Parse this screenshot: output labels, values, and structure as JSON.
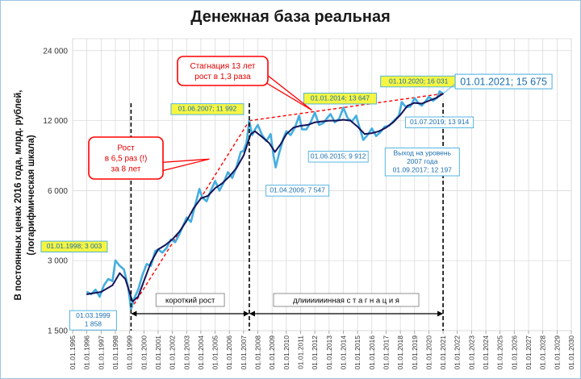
{
  "chart_data": {
    "type": "line",
    "title": "Денежная база реальная",
    "ylabel": "В постоянных ценах 2016 года, млрд. рублей, (логарифмическая шкала)",
    "ylabel_lines": [
      "В постоянных ценах 2016 года, млрд. рублей,",
      "(логарифмическая шкала)"
    ],
    "y_scale": "log",
    "ylim": [
      1500,
      27000
    ],
    "y_ticks": [
      1500,
      3000,
      6000,
      12000,
      24000
    ],
    "y_tick_labels": [
      "1 500",
      "3 000",
      "6 000",
      "12 000",
      "24 000"
    ],
    "x_range": [
      1995,
      2030
    ],
    "x_tick_labels": [
      "01.01.1995",
      "01.01.1996",
      "01.01.1997",
      "01.01.1998",
      "01.01.1999",
      "01.01.2000",
      "01.01.2001",
      "01.01.2002",
      "01.01.2003",
      "01.01.2004",
      "01.01.2005",
      "01.01.2006",
      "01.01.2007",
      "01.01.2008",
      "01.01.2009",
      "01.01.2010",
      "01.01.2011",
      "01.01.2012",
      "01.01.2013",
      "01.01.2014",
      "01.01.2015",
      "01.01.2016",
      "01.01.2017",
      "01.01.2018",
      "01.01.2019",
      "01.01.2020",
      "01.01.2021",
      "01.01.2022",
      "01.01.2023",
      "01.01.2024",
      "01.01.2025",
      "01.01.2026",
      "01.01.2027",
      "01.01.2028",
      "01.01.2029",
      "01.01.2030"
    ],
    "grid": true,
    "colors": {
      "monthly": "#44aee0",
      "trend": "#14145a",
      "dashed_trend": "#ff0000",
      "callout_border": "#ff0000",
      "label_yellow": "#f5f542",
      "label_border": "#44aee0",
      "label_text": "#1b6fb0"
    },
    "series": [
      {
        "values": [
          [
            1996.0,
            2200
          ],
          [
            1996.3,
            2150
          ],
          [
            1996.6,
            2250
          ],
          [
            1996.9,
            2100
          ],
          [
            1997.2,
            2350
          ],
          [
            1997.5,
            2500
          ],
          [
            1997.8,
            2450
          ],
          [
            1998.0,
            3003
          ],
          [
            1998.3,
            2850
          ],
          [
            1998.6,
            2750
          ],
          [
            1998.9,
            2300
          ],
          [
            1999.1,
            1858
          ],
          [
            1999.3,
            2050
          ],
          [
            1999.6,
            2250
          ],
          [
            1999.9,
            2600
          ],
          [
            2000.2,
            2900
          ],
          [
            2000.5,
            2850
          ],
          [
            2000.8,
            3300
          ],
          [
            2001.0,
            3350
          ],
          [
            2001.3,
            3250
          ],
          [
            2001.6,
            3400
          ],
          [
            2001.9,
            3700
          ],
          [
            2002.2,
            3600
          ],
          [
            2002.5,
            3900
          ],
          [
            2002.8,
            4300
          ],
          [
            2003.0,
            4600
          ],
          [
            2003.3,
            4400
          ],
          [
            2003.6,
            5200
          ],
          [
            2003.9,
            6100
          ],
          [
            2004.1,
            5600
          ],
          [
            2004.4,
            5400
          ],
          [
            2004.7,
            6000
          ],
          [
            2005.0,
            6600
          ],
          [
            2005.3,
            6000
          ],
          [
            2005.6,
            6500
          ],
          [
            2005.9,
            7200
          ],
          [
            2006.2,
            6800
          ],
          [
            2006.5,
            7600
          ],
          [
            2006.8,
            8800
          ],
          [
            2007.0,
            8900
          ],
          [
            2007.2,
            9600
          ],
          [
            2007.4,
            11992
          ],
          [
            2007.6,
            10400
          ],
          [
            2007.8,
            11000
          ],
          [
            2008.0,
            11500
          ],
          [
            2008.3,
            10400
          ],
          [
            2008.6,
            9800
          ],
          [
            2008.9,
            10500
          ],
          [
            2009.1,
            8500
          ],
          [
            2009.25,
            7547
          ],
          [
            2009.5,
            8700
          ],
          [
            2009.8,
            10100
          ],
          [
            2010.0,
            10800
          ],
          [
            2010.3,
            10400
          ],
          [
            2010.6,
            11200
          ],
          [
            2010.9,
            12600
          ],
          [
            2011.1,
            11000
          ],
          [
            2011.4,
            11000
          ],
          [
            2011.7,
            11800
          ],
          [
            2012.0,
            13000
          ],
          [
            2012.3,
            11500
          ],
          [
            2012.6,
            11700
          ],
          [
            2012.9,
            12400
          ],
          [
            2013.1,
            12800
          ],
          [
            2013.4,
            11800
          ],
          [
            2013.7,
            12200
          ],
          [
            2014.0,
            13647
          ],
          [
            2014.3,
            12300
          ],
          [
            2014.6,
            11900
          ],
          [
            2014.9,
            12600
          ],
          [
            2015.1,
            11400
          ],
          [
            2015.4,
            9912
          ],
          [
            2015.7,
            10400
          ],
          [
            2016.0,
            11100
          ],
          [
            2016.3,
            10300
          ],
          [
            2016.6,
            10700
          ],
          [
            2016.9,
            11300
          ],
          [
            2017.2,
            11400
          ],
          [
            2017.67,
            12197
          ],
          [
            2017.9,
            12600
          ],
          [
            2018.1,
            14400
          ],
          [
            2018.4,
            13700
          ],
          [
            2018.7,
            13800
          ],
          [
            2019.0,
            15000
          ],
          [
            2019.3,
            14200
          ],
          [
            2019.5,
            13914
          ],
          [
            2019.8,
            14600
          ],
          [
            2020.0,
            15200
          ],
          [
            2020.3,
            14600
          ],
          [
            2020.6,
            15100
          ],
          [
            2020.75,
            16031
          ],
          [
            2021.0,
            15675
          ]
        ]
      },
      {
        "values": [
          [
            1996.0,
            2150
          ],
          [
            1997.0,
            2200
          ],
          [
            1997.8,
            2350
          ],
          [
            1998.3,
            2650
          ],
          [
            1998.7,
            2500
          ],
          [
            1999.2,
            2000
          ],
          [
            1999.6,
            2100
          ],
          [
            2000.0,
            2450
          ],
          [
            2000.5,
            2950
          ],
          [
            2001.0,
            3350
          ],
          [
            2001.5,
            3500
          ],
          [
            2002.0,
            3700
          ],
          [
            2002.5,
            4000
          ],
          [
            2003.0,
            4450
          ],
          [
            2003.5,
            5050
          ],
          [
            2004.0,
            5550
          ],
          [
            2004.5,
            5700
          ],
          [
            2005.0,
            6150
          ],
          [
            2005.5,
            6450
          ],
          [
            2006.0,
            6900
          ],
          [
            2006.5,
            7500
          ],
          [
            2007.0,
            8500
          ],
          [
            2007.5,
            10500
          ],
          [
            2007.8,
            10800
          ],
          [
            2008.3,
            10200
          ],
          [
            2008.8,
            9600
          ],
          [
            2009.2,
            8800
          ],
          [
            2009.6,
            9500
          ],
          [
            2010.0,
            10500
          ],
          [
            2010.5,
            11200
          ],
          [
            2011.0,
            11400
          ],
          [
            2011.5,
            11500
          ],
          [
            2012.0,
            11800
          ],
          [
            2012.5,
            11900
          ],
          [
            2013.0,
            12000
          ],
          [
            2013.5,
            12000
          ],
          [
            2014.0,
            12100
          ],
          [
            2014.5,
            12000
          ],
          [
            2015.0,
            11300
          ],
          [
            2015.5,
            10500
          ],
          [
            2016.0,
            10600
          ],
          [
            2016.5,
            10800
          ],
          [
            2017.0,
            11200
          ],
          [
            2017.5,
            11800
          ],
          [
            2018.0,
            12700
          ],
          [
            2018.5,
            13900
          ],
          [
            2019.0,
            14300
          ],
          [
            2019.5,
            14200
          ],
          [
            2020.0,
            14600
          ],
          [
            2020.5,
            15000
          ],
          [
            2021.0,
            15675
          ]
        ]
      }
    ],
    "dashed_lines": [
      {
        "points": [
          [
            1999.1,
            1858
          ],
          [
            2007.4,
            11992
          ]
        ]
      },
      {
        "points": [
          [
            2007.4,
            11992
          ],
          [
            2021.0,
            15675
          ]
        ]
      }
    ],
    "period_markers": [
      {
        "x": 1999.1,
        "label": ""
      },
      {
        "x": 2007.4,
        "label": ""
      },
      {
        "x": 2021.0,
        "label": ""
      }
    ],
    "period_labels": [
      {
        "from": 1999.1,
        "to": 2007.4,
        "label": "короткий рост"
      },
      {
        "from": 2007.4,
        "to": 2021.0,
        "label": "длиииииинная с т а г н а ц и я"
      }
    ],
    "point_labels": [
      {
        "x": 1998.0,
        "y": 3003,
        "text": "01.01.1998; 3 003",
        "style": "yellow"
      },
      {
        "x": 2007.4,
        "y": 11992,
        "text": "01.06.2007; 11 992",
        "style": "yellow"
      },
      {
        "x": 2014.0,
        "y": 13647,
        "text": "01.01.2014; 13 647",
        "style": "yellow"
      },
      {
        "x": 2020.75,
        "y": 16031,
        "text": "01.10.2020; 16 031",
        "style": "yellow"
      },
      {
        "x": 1999.1,
        "y": 1858,
        "lines": [
          "01.03.1999",
          "1 858"
        ],
        "style": "white"
      },
      {
        "x": 2009.25,
        "y": 7547,
        "text": "01.04.2009; 7 547",
        "style": "white"
      },
      {
        "x": 2015.4,
        "y": 9912,
        "text": "01.06.2015; 9 912",
        "style": "white"
      },
      {
        "x": 2019.5,
        "y": 13914,
        "text": "01.07.2019; 13 914",
        "style": "white"
      },
      {
        "x": 2017.67,
        "y": 12197,
        "lines": [
          "Выход на уровень",
          "2007 года",
          "01.09.2017; 12 197"
        ],
        "style": "white"
      },
      {
        "x": 2021.0,
        "y": 15675,
        "text": "01.01.2021; 15 675",
        "style": "big"
      }
    ],
    "callouts": [
      {
        "lines": [
          "Рост",
          "в 6,5 раз (!)",
          "за 8 лет"
        ],
        "pointer": [
          2004.6,
          8200
        ]
      },
      {
        "lines": [
          "Стагнация 13 лет",
          "рост в 1,3 раза"
        ],
        "pointer": [
          2011.8,
          13300
        ]
      }
    ]
  }
}
